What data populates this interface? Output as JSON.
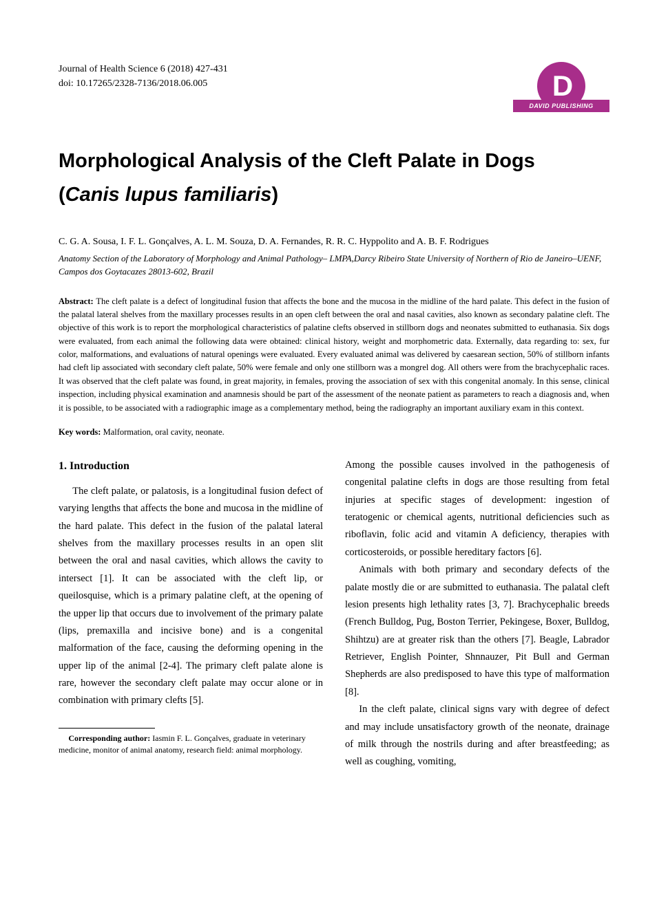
{
  "header": {
    "journal_line": "Journal of Health Science 6 (2018) 427-431",
    "doi_line": "doi: 10.17265/2328-7136/2018.06.005",
    "publisher_banner": "DAVID  PUBLISHING",
    "logo_letter": "D"
  },
  "title": {
    "line1": "Morphological Analysis of the Cleft Palate in Dogs",
    "line2_open": "(",
    "line2_italic": "Canis lupus familiaris",
    "line2_close": ")"
  },
  "authors": "C. G. A. Sousa, I. F. L. Gonçalves, A. L. M. Souza, D. A. Fernandes, R. R. C. Hyppolito and A. B. F. Rodrigues",
  "affiliation": "Anatomy Section of the Laboratory of Morphology and Animal Pathology– LMPA,Darcy Ribeiro State University of Northern of Rio de Janeiro–UENF, Campos dos Goytacazes 28013-602, Brazil",
  "abstract": {
    "label": "Abstract: ",
    "text": "The cleft palate is a defect of longitudinal fusion that affects the bone and the mucosa in the midline of the hard palate. This defect in the fusion of the palatal lateral shelves from the maxillary processes results in an open cleft between the oral and nasal cavities, also known as secondary palatine cleft. The objective of this work is to report the morphological characteristics of palatine clefts observed in stillborn dogs and neonates submitted to euthanasia. Six dogs were evaluated, from each animal the following data were obtained: clinical history, weight and morphometric data. Externally, data regarding to: sex, fur color, malformations, and evaluations of natural openings were evaluated. Every evaluated animal was delivered by caesarean section, 50% of stillborn infants had cleft lip associated with secondary cleft palate, 50% were female and only one stillborn was a mongrel dog. All others were from the brachycephalic races. It was observed that the cleft palate was found, in great majority, in females, proving the association of sex with this congenital anomaly. In this sense, clinical inspection, including physical examination and anamnesis should be part of the assessment of the neonate patient as parameters to reach a diagnosis and, when it is possible, to be associated with a radiographic image as a complementary method, being the radiography an important auxiliary exam in this context."
  },
  "keywords": {
    "label": "Key words: ",
    "text": "Malformation, oral cavity, neonate."
  },
  "section1_heading": "1. Introduction",
  "col_left": {
    "p1": "The cleft palate, or palatosis, is a longitudinal fusion defect of varying lengths that affects the bone and mucosa in the midline of the hard palate. This defect in the fusion of the palatal lateral shelves from the maxillary processes results in an open slit between the oral and nasal cavities, which allows the cavity to intersect [1]. It can be associated with the cleft lip, or queilosquise, which is a primary palatine cleft, at the opening of the upper lip that occurs due to involvement of the primary palate (lips, premaxilla and incisive bone) and is a congenital malformation of the face, causing the deforming opening in the upper lip of the animal [2-4]. The primary cleft palate alone is rare, however the secondary cleft palate may occur alone or in combination with primary clefts [5]."
  },
  "col_right": {
    "p1": "Among the possible causes involved in the pathogenesis of congenital palatine clefts in dogs are those resulting from fetal injuries at specific stages of development: ingestion of teratogenic or chemical agents, nutritional deficiencies such as riboflavin, folic acid and vitamin A deficiency, therapies with corticosteroids, or possible hereditary factors [6].",
    "p2": "Animals with both primary and secondary defects of the palate mostly die or are submitted to euthanasia. The palatal cleft lesion presents high lethality rates [3, 7]. Brachycephalic breeds (French Bulldog, Pug, Boston Terrier, Pekingese, Boxer, Bulldog, Shihtzu) are at greater risk than the others [7]. Beagle, Labrador Retriever, English Pointer, Shnnauzer, Pit Bull and German Shepherds are also predisposed to have this type of malformation [8].",
    "p3": "In the cleft palate, clinical signs vary with degree of defect and may include unsatisfactory growth of the neonate, drainage of milk through the nostrils during and after breastfeeding; as well as coughing, vomiting,"
  },
  "footnote": {
    "label": "Corresponding author: ",
    "text": "Iasmin F. L. Gonçalves, graduate in veterinary medicine, monitor of animal anatomy, research field: animal morphology."
  },
  "colors": {
    "brand": "#a82d8a",
    "text": "#000000",
    "background": "#ffffff"
  }
}
